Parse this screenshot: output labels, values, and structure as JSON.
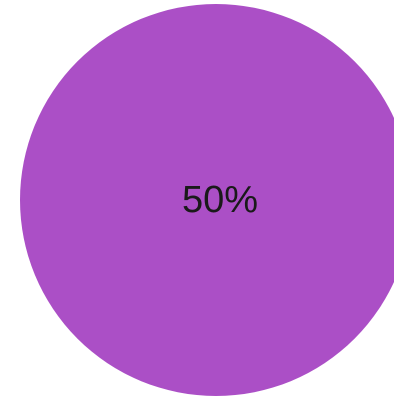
{
  "chart_data": {
    "type": "pie",
    "title": "",
    "slices": [
      {
        "label": "",
        "value": 50,
        "display": "50%",
        "color": "#ab4fc6"
      }
    ]
  }
}
